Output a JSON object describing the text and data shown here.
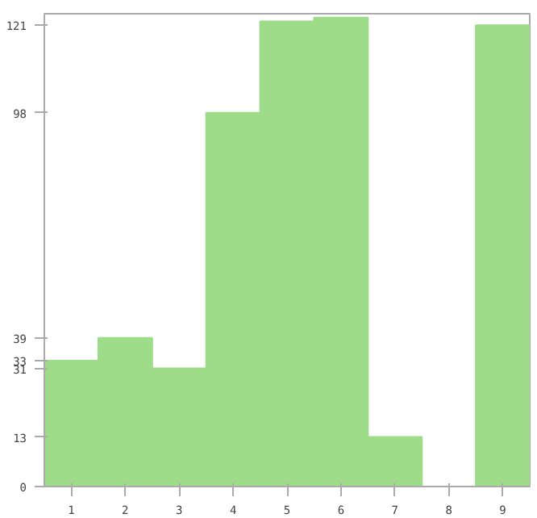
{
  "chart_data": {
    "type": "bar",
    "categories": [
      "1",
      "2",
      "3",
      "4",
      "5",
      "6",
      "7",
      "8",
      "9"
    ],
    "values": [
      33,
      39,
      31,
      98,
      122,
      123,
      13,
      0,
      121
    ],
    "color": "#9edc8a",
    "ylim": [
      0,
      124
    ],
    "yticks": [
      0,
      13,
      31,
      33,
      39,
      98,
      121
    ],
    "grid": false
  }
}
